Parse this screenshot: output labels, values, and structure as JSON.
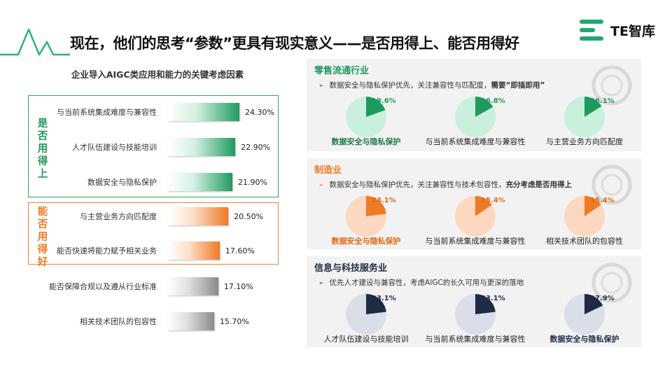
{
  "header": {
    "title": "现在，他们的思考“参数”更具有现实意义——是否用得上、能否用得好",
    "logo_text": "TE智库"
  },
  "colors": {
    "green": "#1f9a5d",
    "green_light": "#c9f0dc",
    "orange": "#ef7a26",
    "orange_light": "#fbd8bf",
    "navy": "#1f2a44",
    "navy_light": "#d9dee9",
    "gray": "#8a8a8a"
  },
  "chart_data": [
    {
      "type": "bar",
      "orientation": "horizontal",
      "title": "企业导入AIGC类应用和能力的关键考虑因素",
      "groups": [
        {
          "label": "是否用得上",
          "categories": [
            "与当前系统集成难度与兼容性",
            "人才队伍建设与技能培训",
            "数据安全与隐私保护"
          ]
        },
        {
          "label": "能否用得好",
          "categories": [
            "与主营业务方向匹配度",
            "能否快速将能力赋予相关业务"
          ]
        }
      ],
      "categories": [
        "与当前系统集成难度与兼容性",
        "人才队伍建设与技能培训",
        "数据安全与隐私保护",
        "与主营业务方向匹配度",
        "能否快速将能力赋予相关业务",
        "能否保障合规以及遵从行业标准",
        "相关技术团队的包容性"
      ],
      "values": [
        24.3,
        22.9,
        21.9,
        20.5,
        17.6,
        17.1,
        15.7
      ],
      "value_labels": [
        "24.30%",
        "22.90%",
        "21.90%",
        "20.50%",
        "17.60%",
        "17.10%",
        "15.70%"
      ]
    },
    {
      "type": "pie",
      "title": "零售流通行业",
      "note": "数据安全与隐私保护优先，关注兼容性与匹配度，",
      "note_bold": "需要“即插即用”",
      "categories": [
        "数据安全与隐私保护",
        "与当前系统集成难度与兼容性",
        "与主营业务方向匹配度"
      ],
      "values": [
        19.6,
        16.8,
        16.1
      ],
      "value_labels": [
        "19.6%",
        "16.8%",
        "16.1%"
      ],
      "highlight": [
        true,
        false,
        false
      ]
    },
    {
      "type": "pie",
      "title": "制造业",
      "note": "数据安全与隐私保护优先，关注兼容性与技术包容性，",
      "note_bold": "充分考虑是否用得上",
      "categories": [
        "数据安全与隐私保护",
        "与当前系统集成难度与兼容性",
        "相关技术团队的包容性"
      ],
      "values": [
        23.1,
        15.4,
        15.4
      ],
      "value_labels": [
        "23.1%",
        "15.4%",
        "15.4%"
      ],
      "highlight": [
        true,
        false,
        false
      ]
    },
    {
      "type": "pie",
      "title": "信息与科技服务业",
      "note": "优先人才建设与兼容性，考虑AIGC的长久可用与更深的落地",
      "note_bold": "",
      "categories": [
        "人才队伍建设与技能培训",
        "与当前系统集成难度与兼容性",
        "数据安全与隐私保护"
      ],
      "values": [
        23.1,
        23.1,
        17.9
      ],
      "value_labels": [
        "23.1%",
        "23.1%",
        "17.9%"
      ],
      "highlight": [
        false,
        false,
        true
      ]
    }
  ]
}
